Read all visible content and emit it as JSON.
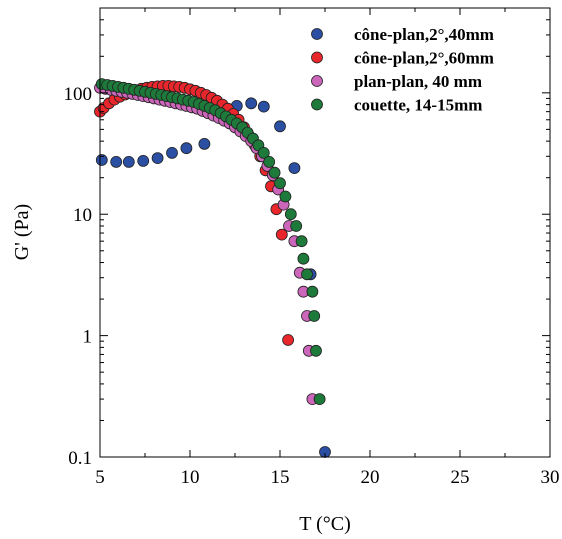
{
  "chart_data": {
    "type": "scatter",
    "xlabel": "T (°C)",
    "ylabel": "G' (Pa)",
    "xlim": [
      5,
      30
    ],
    "ylim": [
      0.1,
      500
    ],
    "yscale": "log",
    "grid": false,
    "legend_position": "top-right",
    "x_ticks": [
      5,
      10,
      15,
      20,
      25,
      30
    ],
    "x_tick_labels": [
      "5",
      "10",
      "15",
      "20",
      "25",
      "30"
    ],
    "y_ticks": [
      0.1,
      1,
      10,
      100
    ],
    "y_tick_labels": [
      "0.1",
      "1",
      "10",
      "100"
    ],
    "series": [
      {
        "name": "cône-plan,2°,40mm",
        "color": "#2b4fa3",
        "points": [
          [
            5.1,
            28
          ],
          [
            5.9,
            27
          ],
          [
            6.6,
            27
          ],
          [
            7.4,
            27.5
          ],
          [
            8.2,
            29
          ],
          [
            9.0,
            32
          ],
          [
            9.8,
            35
          ],
          [
            10.8,
            38
          ],
          [
            12.0,
            70
          ],
          [
            12.6,
            78
          ],
          [
            13.4,
            82
          ],
          [
            14.1,
            77
          ],
          [
            15.0,
            53
          ],
          [
            15.8,
            24
          ],
          [
            16.7,
            3.2
          ],
          [
            17.5,
            0.11
          ]
        ]
      },
      {
        "name": "cône-plan,2°,60mm",
        "color": "#e8262b",
        "points": [
          [
            5.0,
            70
          ],
          [
            5.2,
            75
          ],
          [
            5.5,
            82
          ],
          [
            5.8,
            88
          ],
          [
            6.1,
            93
          ],
          [
            6.4,
            97
          ],
          [
            6.7,
            101
          ],
          [
            7.0,
            105
          ],
          [
            7.3,
            108
          ],
          [
            7.6,
            110
          ],
          [
            7.9,
            112
          ],
          [
            8.2,
            113
          ],
          [
            8.5,
            114
          ],
          [
            8.8,
            114
          ],
          [
            9.1,
            113
          ],
          [
            9.4,
            112
          ],
          [
            9.7,
            110
          ],
          [
            10.0,
            107
          ],
          [
            10.3,
            104
          ],
          [
            10.6,
            100
          ],
          [
            10.9,
            96
          ],
          [
            11.2,
            91
          ],
          [
            11.5,
            86
          ],
          [
            11.8,
            80
          ],
          [
            12.1,
            74
          ],
          [
            12.4,
            67
          ],
          [
            12.7,
            60
          ],
          [
            13.0,
            52
          ],
          [
            13.3,
            44
          ],
          [
            13.6,
            37
          ],
          [
            13.9,
            30
          ],
          [
            14.2,
            23
          ],
          [
            14.5,
            17
          ],
          [
            14.8,
            11
          ],
          [
            15.1,
            6.8
          ],
          [
            15.45,
            0.92
          ]
        ]
      },
      {
        "name": "plan-plan, 40 mm",
        "color": "#cc66bb",
        "points": [
          [
            5.0,
            110
          ],
          [
            5.3,
            108
          ],
          [
            5.6,
            106
          ],
          [
            5.9,
            104
          ],
          [
            6.2,
            102
          ],
          [
            6.5,
            100
          ],
          [
            6.8,
            98
          ],
          [
            7.1,
            96
          ],
          [
            7.4,
            94
          ],
          [
            7.7,
            92
          ],
          [
            8.0,
            90
          ],
          [
            8.3,
            88
          ],
          [
            8.6,
            86
          ],
          [
            8.9,
            84
          ],
          [
            9.2,
            82
          ],
          [
            9.5,
            80
          ],
          [
            9.8,
            78
          ],
          [
            10.1,
            76
          ],
          [
            10.4,
            74
          ],
          [
            10.7,
            71
          ],
          [
            11.0,
            68
          ],
          [
            11.3,
            65
          ],
          [
            11.6,
            62
          ],
          [
            11.9,
            59
          ],
          [
            12.2,
            56
          ],
          [
            12.5,
            52
          ],
          [
            12.8,
            48
          ],
          [
            13.1,
            44
          ],
          [
            13.4,
            40
          ],
          [
            13.7,
            35
          ],
          [
            14.0,
            30
          ],
          [
            14.3,
            25
          ],
          [
            14.6,
            21
          ],
          [
            14.9,
            16
          ],
          [
            15.2,
            12
          ],
          [
            15.5,
            8
          ],
          [
            15.8,
            6
          ],
          [
            16.1,
            3.3
          ],
          [
            16.3,
            2.3
          ],
          [
            16.5,
            1.45
          ],
          [
            16.6,
            0.75
          ],
          [
            16.8,
            0.3
          ]
        ]
      },
      {
        "name": "couette, 14-15mm",
        "color": "#1e7a3a",
        "points": [
          [
            5.1,
            118
          ],
          [
            5.4,
            116
          ],
          [
            5.7,
            114
          ],
          [
            6.0,
            112
          ],
          [
            6.3,
            110
          ],
          [
            6.6,
            108
          ],
          [
            6.9,
            106
          ],
          [
            7.2,
            104
          ],
          [
            7.5,
            102
          ],
          [
            7.8,
            100
          ],
          [
            8.1,
            98
          ],
          [
            8.4,
            96
          ],
          [
            8.7,
            94
          ],
          [
            9.0,
            92
          ],
          [
            9.3,
            90
          ],
          [
            9.6,
            88
          ],
          [
            9.9,
            86
          ],
          [
            10.2,
            84
          ],
          [
            10.5,
            81
          ],
          [
            10.8,
            78
          ],
          [
            11.1,
            75
          ],
          [
            11.4,
            72
          ],
          [
            11.7,
            68
          ],
          [
            12.0,
            64
          ],
          [
            12.3,
            60
          ],
          [
            12.6,
            56
          ],
          [
            12.9,
            52
          ],
          [
            13.2,
            47
          ],
          [
            13.5,
            42
          ],
          [
            13.8,
            37
          ],
          [
            14.1,
            32
          ],
          [
            14.4,
            27
          ],
          [
            14.7,
            22
          ],
          [
            15.0,
            18
          ],
          [
            15.3,
            14
          ],
          [
            15.6,
            10
          ],
          [
            15.9,
            8
          ],
          [
            16.2,
            6
          ],
          [
            16.3,
            4.3
          ],
          [
            16.5,
            3.2
          ],
          [
            16.8,
            2.3
          ],
          [
            16.9,
            1.45
          ],
          [
            17.0,
            0.75
          ],
          [
            17.2,
            0.3
          ]
        ]
      }
    ]
  }
}
